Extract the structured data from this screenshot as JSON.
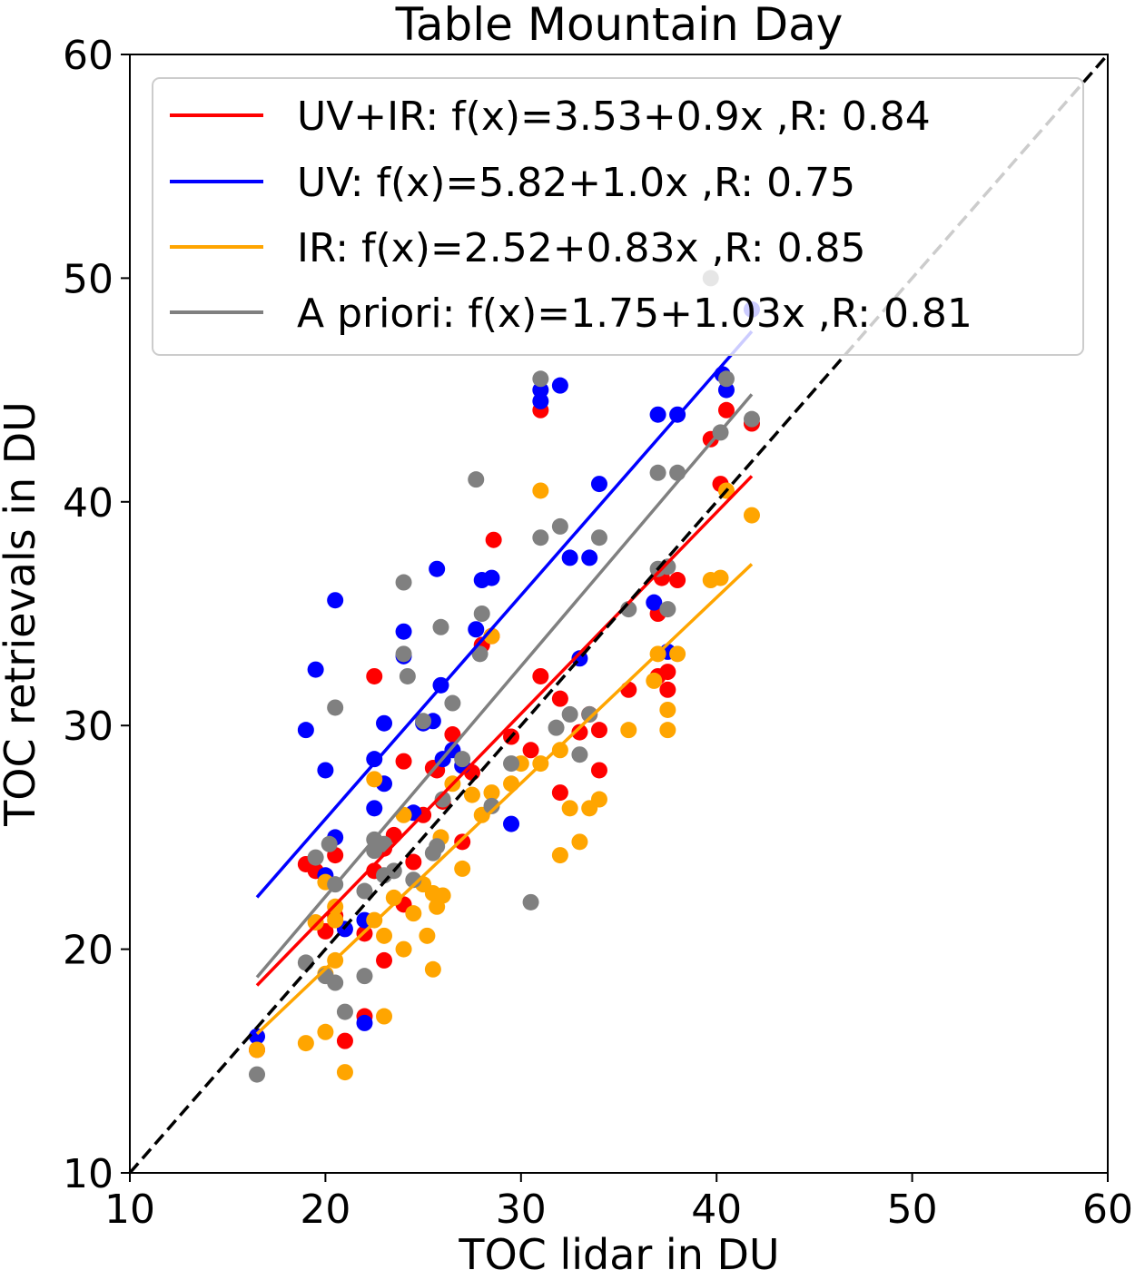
{
  "chart_data": {
    "type": "scatter",
    "title": "Table Mountain Day",
    "xlabel": "TOC lidar in DU",
    "ylabel": "TOC retrievals in DU",
    "xlim": [
      10,
      60
    ],
    "ylim": [
      10,
      60
    ],
    "xticks": [
      "10",
      "20",
      "30",
      "40",
      "50",
      "60"
    ],
    "yticks": [
      "10",
      "20",
      "30",
      "40",
      "50",
      "60"
    ],
    "grid": false,
    "legend_position": "top",
    "reference_line": {
      "style": "dashed",
      "color": "#000000",
      "slope": 1,
      "intercept": 0,
      "x_range": [
        10,
        60
      ]
    },
    "series": [
      {
        "name": "UV+IR",
        "color": "#ff0000",
        "legend_label": "UV+IR: f(x)=3.53+0.9x ,R: 0.84",
        "fit": {
          "intercept": 3.53,
          "slope": 0.9,
          "x_range": [
            16.5,
            41.8
          ]
        },
        "points": [
          [
            16.5,
            15.5
          ],
          [
            19,
            23.8
          ],
          [
            19.5,
            23.5
          ],
          [
            20,
            20.8
          ],
          [
            20.5,
            24.2
          ],
          [
            20.5,
            21.5
          ],
          [
            21,
            15.9
          ],
          [
            22,
            17
          ],
          [
            22,
            20.7
          ],
          [
            22.5,
            32.2
          ],
          [
            22.5,
            23.5
          ],
          [
            23,
            24.5
          ],
          [
            23,
            19.5
          ],
          [
            23.5,
            25.1
          ],
          [
            24,
            22
          ],
          [
            24,
            28.4
          ],
          [
            24.5,
            23.9
          ],
          [
            25,
            26
          ],
          [
            25.5,
            28.1
          ],
          [
            25.7,
            28
          ],
          [
            26,
            26.6
          ],
          [
            26.5,
            29.6
          ],
          [
            27,
            24.8
          ],
          [
            27.5,
            27.9
          ],
          [
            28,
            33.6
          ],
          [
            28.5,
            34
          ],
          [
            28.6,
            38.3
          ],
          [
            29.5,
            29.5
          ],
          [
            30.5,
            28.9
          ],
          [
            31,
            44.1
          ],
          [
            31,
            32.2
          ],
          [
            32,
            27
          ],
          [
            32,
            31.2
          ],
          [
            33,
            29.7
          ],
          [
            33.5,
            30.5
          ],
          [
            34,
            29.8
          ],
          [
            34,
            28
          ],
          [
            35.5,
            31.6
          ],
          [
            37,
            35
          ],
          [
            37,
            32.2
          ],
          [
            37.2,
            36.6
          ],
          [
            37.5,
            32.4
          ],
          [
            37.5,
            31.6
          ],
          [
            38,
            36.5
          ],
          [
            39.7,
            42.8
          ],
          [
            40.2,
            40.8
          ],
          [
            40.5,
            44.1
          ],
          [
            41.8,
            43.5
          ]
        ]
      },
      {
        "name": "UV",
        "color": "#0000ff",
        "legend_label": "UV: f(x)=5.82+1.0x ,R: 0.75",
        "fit": {
          "intercept": 5.82,
          "slope": 1.0,
          "x_range": [
            16.5,
            41.8
          ]
        },
        "points": [
          [
            16.5,
            16.1
          ],
          [
            19,
            29.8
          ],
          [
            19.5,
            32.5
          ],
          [
            20,
            28
          ],
          [
            20,
            23.3
          ],
          [
            20.5,
            35.6
          ],
          [
            20.5,
            25
          ],
          [
            21,
            20.9
          ],
          [
            22,
            21.3
          ],
          [
            22,
            16.7
          ],
          [
            22.5,
            28.5
          ],
          [
            22.5,
            26.3
          ],
          [
            23,
            27.4
          ],
          [
            23,
            30.1
          ],
          [
            24,
            34.2
          ],
          [
            24,
            33.1
          ],
          [
            24.5,
            26.1
          ],
          [
            25,
            30.1
          ],
          [
            25.5,
            30.2
          ],
          [
            25.7,
            37
          ],
          [
            25.9,
            31.8
          ],
          [
            26,
            28.5
          ],
          [
            26.5,
            28.9
          ],
          [
            27,
            28.2
          ],
          [
            27.7,
            34.3
          ],
          [
            28,
            36.5
          ],
          [
            28.5,
            36.6
          ],
          [
            29.5,
            25.6
          ],
          [
            31,
            45
          ],
          [
            31,
            44.5
          ],
          [
            32,
            45.2
          ],
          [
            32.5,
            37.5
          ],
          [
            33,
            33
          ],
          [
            33.5,
            37.5
          ],
          [
            34,
            40.8
          ],
          [
            36.8,
            35.5
          ],
          [
            37,
            43.9
          ],
          [
            37.5,
            33.3
          ],
          [
            38,
            43.9
          ],
          [
            40.3,
            45.7
          ],
          [
            40.5,
            45
          ],
          [
            41.8,
            48.6
          ]
        ]
      },
      {
        "name": "IR",
        "color": "#ffa500",
        "legend_label": "IR: f(x)=2.52+0.83x ,R: 0.85",
        "fit": {
          "intercept": 2.52,
          "slope": 0.83,
          "x_range": [
            16.5,
            41.8
          ]
        },
        "points": [
          [
            16.5,
            15.5
          ],
          [
            19,
            15.8
          ],
          [
            19.5,
            21.2
          ],
          [
            20,
            16.3
          ],
          [
            20,
            18.9
          ],
          [
            20,
            23
          ],
          [
            20.5,
            21.3
          ],
          [
            20.5,
            21.9
          ],
          [
            20.5,
            19.5
          ],
          [
            21,
            14.5
          ],
          [
            22.5,
            21.3
          ],
          [
            22.5,
            27.6
          ],
          [
            23,
            20.6
          ],
          [
            23,
            17
          ],
          [
            23.5,
            22.3
          ],
          [
            24,
            26
          ],
          [
            24,
            20
          ],
          [
            24.5,
            21.6
          ],
          [
            25,
            22.9
          ],
          [
            25.2,
            20.6
          ],
          [
            25.5,
            22.5
          ],
          [
            25.5,
            19.1
          ],
          [
            25.7,
            21.9
          ],
          [
            25.9,
            25
          ],
          [
            26,
            22.4
          ],
          [
            26.5,
            27.4
          ],
          [
            27,
            23.6
          ],
          [
            27.5,
            26.9
          ],
          [
            28,
            26
          ],
          [
            28.5,
            34
          ],
          [
            28.5,
            27
          ],
          [
            29.5,
            27.4
          ],
          [
            30,
            28.3
          ],
          [
            31,
            40.5
          ],
          [
            31,
            28.3
          ],
          [
            32,
            24.2
          ],
          [
            32,
            28.9
          ],
          [
            32.5,
            26.3
          ],
          [
            33,
            24.8
          ],
          [
            33.5,
            26.3
          ],
          [
            34,
            26.7
          ],
          [
            35.5,
            29.8
          ],
          [
            36.8,
            32
          ],
          [
            37,
            33.2
          ],
          [
            37.5,
            30.7
          ],
          [
            37.5,
            29.8
          ],
          [
            38,
            33.2
          ],
          [
            39.7,
            36.5
          ],
          [
            40.2,
            36.6
          ],
          [
            40.5,
            40.5
          ],
          [
            41.8,
            39.4
          ]
        ]
      },
      {
        "name": "A priori",
        "color": "#808080",
        "legend_label": "A priori: f(x)=1.75+1.03x ,R: 0.81",
        "fit": {
          "intercept": 1.75,
          "slope": 1.03,
          "x_range": [
            16.5,
            41.8
          ]
        },
        "points": [
          [
            16.5,
            14.4
          ],
          [
            19,
            19.4
          ],
          [
            19.5,
            24.1
          ],
          [
            20,
            18.8
          ],
          [
            20.2,
            24.7
          ],
          [
            20.5,
            30.8
          ],
          [
            20.5,
            22.9
          ],
          [
            20.5,
            18.5
          ],
          [
            21,
            17.2
          ],
          [
            22,
            22.6
          ],
          [
            22,
            18.8
          ],
          [
            22.5,
            24.4
          ],
          [
            22.5,
            24.9
          ],
          [
            23,
            24.7
          ],
          [
            23,
            23.3
          ],
          [
            23.5,
            23.5
          ],
          [
            24,
            36.4
          ],
          [
            24,
            33.2
          ],
          [
            24.2,
            32.2
          ],
          [
            24.5,
            23.1
          ],
          [
            25,
            30.2
          ],
          [
            25.5,
            24.3
          ],
          [
            25.7,
            24.6
          ],
          [
            25.9,
            34.4
          ],
          [
            26,
            26.7
          ],
          [
            26.5,
            31
          ],
          [
            27,
            28.5
          ],
          [
            27.7,
            41
          ],
          [
            27.9,
            33.2
          ],
          [
            28,
            35
          ],
          [
            28.5,
            26.4
          ],
          [
            29.5,
            28.3
          ],
          [
            30.5,
            22.1
          ],
          [
            31,
            45.5
          ],
          [
            31,
            38.4
          ],
          [
            31.8,
            29.9
          ],
          [
            32,
            38.9
          ],
          [
            32.5,
            30.5
          ],
          [
            33,
            28.7
          ],
          [
            33.5,
            30.5
          ],
          [
            34,
            38.4
          ],
          [
            35.5,
            35.2
          ],
          [
            37,
            37
          ],
          [
            37,
            41.3
          ],
          [
            37.5,
            37.1
          ],
          [
            37.5,
            35.2
          ],
          [
            38,
            41.3
          ],
          [
            39.7,
            50
          ],
          [
            40.2,
            43.1
          ],
          [
            40.5,
            45.5
          ],
          [
            41.8,
            43.7
          ]
        ]
      }
    ]
  }
}
